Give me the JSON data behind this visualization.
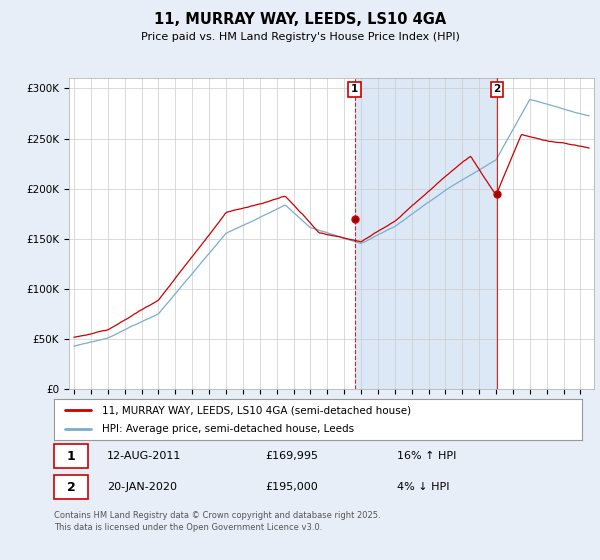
{
  "title": "11, MURRAY WAY, LEEDS, LS10 4GA",
  "subtitle": "Price paid vs. HM Land Registry's House Price Index (HPI)",
  "ylim": [
    0,
    310000
  ],
  "yticks": [
    0,
    50000,
    100000,
    150000,
    200000,
    250000,
    300000
  ],
  "ytick_labels": [
    "£0",
    "£50K",
    "£100K",
    "£150K",
    "£200K",
    "£250K",
    "£300K"
  ],
  "xlim_start": 1994.7,
  "xlim_end": 2025.8,
  "background_color": "#e8eef7",
  "plot_bg_color": "#ffffff",
  "grid_color": "#cccccc",
  "shade_color": "#dce8f5",
  "sale1_date_num": 2011.617,
  "sale1_price": 169995,
  "sale1_label": "1",
  "sale1_date_str": "12-AUG-2011",
  "sale1_price_str": "£169,995",
  "sale1_hpi_str": "16% ↑ HPI",
  "sale2_date_num": 2020.055,
  "sale2_price": 195000,
  "sale2_label": "2",
  "sale2_date_str": "20-JAN-2020",
  "sale2_price_str": "£195,000",
  "sale2_hpi_str": "4% ↓ HPI",
  "legend1_label": "11, MURRAY WAY, LEEDS, LS10 4GA (semi-detached house)",
  "legend2_label": "HPI: Average price, semi-detached house, Leeds",
  "footer": "Contains HM Land Registry data © Crown copyright and database right 2025.\nThis data is licensed under the Open Government Licence v3.0.",
  "red_line_color": "#cc0000",
  "blue_line_color": "#7aadcf",
  "marker_box_color": "#cc0000"
}
